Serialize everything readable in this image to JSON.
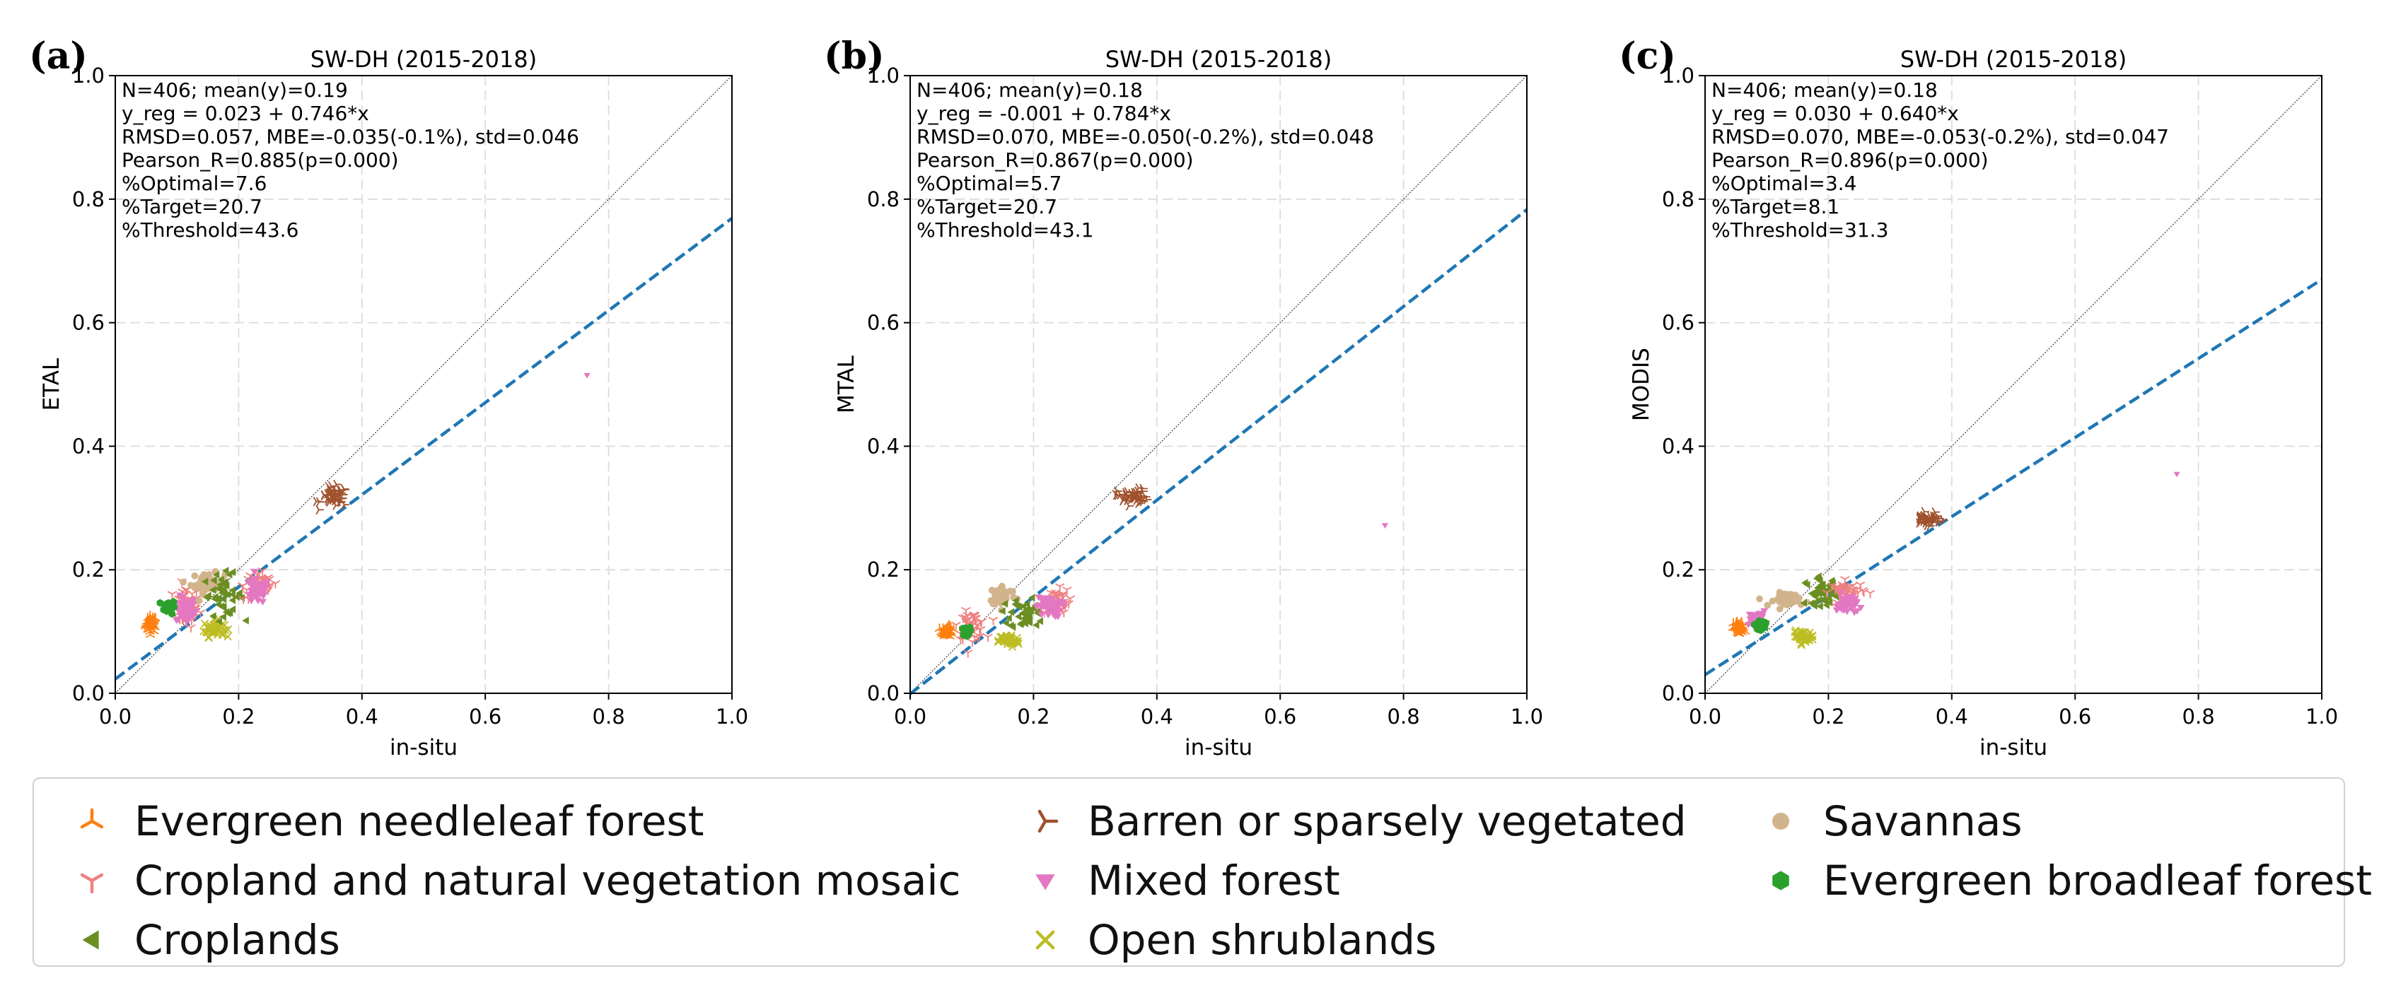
{
  "colors": {
    "enf": "#ff7f0e",
    "barren": "#a0522d",
    "savanna": "#d2b48c",
    "crop_mosaic": "#f08080",
    "mixed": "#e377c2",
    "ebf": "#2ca02c",
    "croplands": "#6b8e23",
    "shrub": "#bcbd22",
    "regline": "#1f77b4",
    "oneone": "#555555"
  },
  "legend": [
    {
      "key": "enf",
      "label": "Evergreen needleleaf forest",
      "marker": "tri_down"
    },
    {
      "key": "barren",
      "label": "Barren or sparsely vegetated",
      "marker": "tri_left"
    },
    {
      "key": "savanna",
      "label": "Savannas",
      "marker": "circle"
    },
    {
      "key": "crop_mosaic",
      "label": "Cropland and natural vegetation mosaic",
      "marker": "tri_up"
    },
    {
      "key": "mixed",
      "label": "Mixed forest",
      "marker": "triangle_down"
    },
    {
      "key": "ebf",
      "label": "Evergreen broadleaf forest",
      "marker": "hexagon"
    },
    {
      "key": "croplands",
      "label": "Croplands",
      "marker": "triangle_left"
    },
    {
      "key": "shrub",
      "label": "Open shrublands",
      "marker": "x"
    }
  ],
  "chart_data": [
    {
      "type": "scatter",
      "panel_label": "(a)",
      "title": "SW-DH (2015-2018)",
      "xlabel": "in-situ",
      "ylabel": "ETAL",
      "xlim": [
        0,
        1
      ],
      "ylim": [
        0,
        1
      ],
      "ticks": [
        "0.0",
        "0.2",
        "0.4",
        "0.6",
        "0.8",
        "1.0"
      ],
      "grid": true,
      "stats": [
        "N=406; mean(y)=0.19",
        "y_reg = 0.023 + 0.746*x",
        "RMSD=0.057, MBE=-0.035(-0.1%), std=0.046",
        "Pearson_R=0.885(p=0.000)",
        "%Optimal=7.6",
        "%Target=20.7",
        "%Threshold=43.6"
      ],
      "regression": {
        "intercept": 0.023,
        "slope": 0.746
      },
      "clusters": [
        {
          "key": "enf",
          "center": [
            0.058,
            0.112
          ],
          "spread": [
            0.008,
            0.012
          ]
        },
        {
          "key": "crop_mosaic",
          "center": [
            0.115,
            0.14
          ],
          "spread": [
            0.02,
            0.03
          ]
        },
        {
          "key": "mixed",
          "center": [
            0.115,
            0.135
          ],
          "spread": [
            0.015,
            0.02
          ]
        },
        {
          "key": "ebf",
          "center": [
            0.088,
            0.14
          ],
          "spread": [
            0.008,
            0.01
          ]
        },
        {
          "key": "shrub",
          "center": [
            0.16,
            0.105
          ],
          "spread": [
            0.015,
            0.012
          ]
        },
        {
          "key": "savanna",
          "center": [
            0.15,
            0.178
          ],
          "spread": [
            0.025,
            0.015
          ]
        },
        {
          "key": "croplands",
          "center": [
            0.175,
            0.16
          ],
          "spread": [
            0.03,
            0.03
          ]
        },
        {
          "key": "crop_mosaic",
          "center": [
            0.235,
            0.175
          ],
          "spread": [
            0.025,
            0.022
          ]
        },
        {
          "key": "mixed",
          "center": [
            0.23,
            0.165
          ],
          "spread": [
            0.018,
            0.018
          ]
        },
        {
          "key": "barren",
          "center": [
            0.355,
            0.318
          ],
          "spread": [
            0.02,
            0.015
          ]
        }
      ],
      "outliers": [
        {
          "key": "mixed",
          "x": 0.765,
          "y": 0.515
        }
      ]
    },
    {
      "type": "scatter",
      "panel_label": "(b)",
      "title": "SW-DH (2015-2018)",
      "xlabel": "in-situ",
      "ylabel": "MTAL",
      "xlim": [
        0,
        1
      ],
      "ylim": [
        0,
        1
      ],
      "ticks": [
        "0.0",
        "0.2",
        "0.4",
        "0.6",
        "0.8",
        "1.0"
      ],
      "grid": true,
      "stats": [
        "N=406; mean(y)=0.18",
        "y_reg = -0.001 + 0.784*x",
        "RMSD=0.070, MBE=-0.050(-0.2%), std=0.048",
        "Pearson_R=0.867(p=0.000)",
        "%Optimal=5.7",
        "%Target=20.7",
        "%Threshold=43.1"
      ],
      "regression": {
        "intercept": -0.001,
        "slope": 0.784
      },
      "clusters": [
        {
          "key": "enf",
          "center": [
            0.06,
            0.1
          ],
          "spread": [
            0.008,
            0.008
          ]
        },
        {
          "key": "crop_mosaic",
          "center": [
            0.1,
            0.11
          ],
          "spread": [
            0.02,
            0.02
          ]
        },
        {
          "key": "ebf",
          "center": [
            0.09,
            0.1
          ],
          "spread": [
            0.006,
            0.006
          ]
        },
        {
          "key": "shrub",
          "center": [
            0.16,
            0.085
          ],
          "spread": [
            0.015,
            0.01
          ]
        },
        {
          "key": "savanna",
          "center": [
            0.15,
            0.158
          ],
          "spread": [
            0.02,
            0.015
          ]
        },
        {
          "key": "croplands",
          "center": [
            0.19,
            0.13
          ],
          "spread": [
            0.025,
            0.025
          ]
        },
        {
          "key": "crop_mosaic",
          "center": [
            0.235,
            0.15
          ],
          "spread": [
            0.022,
            0.018
          ]
        },
        {
          "key": "mixed",
          "center": [
            0.225,
            0.14
          ],
          "spread": [
            0.018,
            0.015
          ]
        },
        {
          "key": "barren",
          "center": [
            0.36,
            0.318
          ],
          "spread": [
            0.022,
            0.012
          ]
        }
      ],
      "outliers": [
        {
          "key": "mixed",
          "x": 0.77,
          "y": 0.272
        }
      ]
    },
    {
      "type": "scatter",
      "panel_label": "(c)",
      "title": "SW-DH (2015-2018)",
      "xlabel": "in-situ",
      "ylabel": "MODIS",
      "xlim": [
        0,
        1
      ],
      "ylim": [
        0,
        1
      ],
      "ticks": [
        "0.0",
        "0.2",
        "0.4",
        "0.6",
        "0.8",
        "1.0"
      ],
      "grid": true,
      "stats": [
        "N=406; mean(y)=0.18",
        "y_reg = 0.030 + 0.640*x",
        "RMSD=0.070, MBE=-0.053(-0.2%), std=0.047",
        "Pearson_R=0.896(p=0.000)",
        "%Optimal=3.4",
        "%Target=8.1",
        "%Threshold=31.3"
      ],
      "regression": {
        "intercept": 0.03,
        "slope": 0.64
      },
      "clusters": [
        {
          "key": "enf",
          "center": [
            0.055,
            0.105
          ],
          "spread": [
            0.008,
            0.01
          ]
        },
        {
          "key": "mixed",
          "center": [
            0.085,
            0.12
          ],
          "spread": [
            0.012,
            0.012
          ]
        },
        {
          "key": "ebf",
          "center": [
            0.09,
            0.11
          ],
          "spread": [
            0.006,
            0.006
          ]
        },
        {
          "key": "shrub",
          "center": [
            0.16,
            0.092
          ],
          "spread": [
            0.015,
            0.008
          ]
        },
        {
          "key": "savanna",
          "center": [
            0.14,
            0.152
          ],
          "spread": [
            0.025,
            0.01
          ]
        },
        {
          "key": "croplands",
          "center": [
            0.19,
            0.165
          ],
          "spread": [
            0.025,
            0.02
          ]
        },
        {
          "key": "crop_mosaic",
          "center": [
            0.23,
            0.165
          ],
          "spread": [
            0.025,
            0.015
          ]
        },
        {
          "key": "mixed",
          "center": [
            0.23,
            0.145
          ],
          "spread": [
            0.015,
            0.015
          ]
        },
        {
          "key": "barren",
          "center": [
            0.36,
            0.282
          ],
          "spread": [
            0.02,
            0.008
          ]
        }
      ],
      "outliers": [
        {
          "key": "mixed",
          "x": 0.765,
          "y": 0.355
        }
      ]
    }
  ]
}
